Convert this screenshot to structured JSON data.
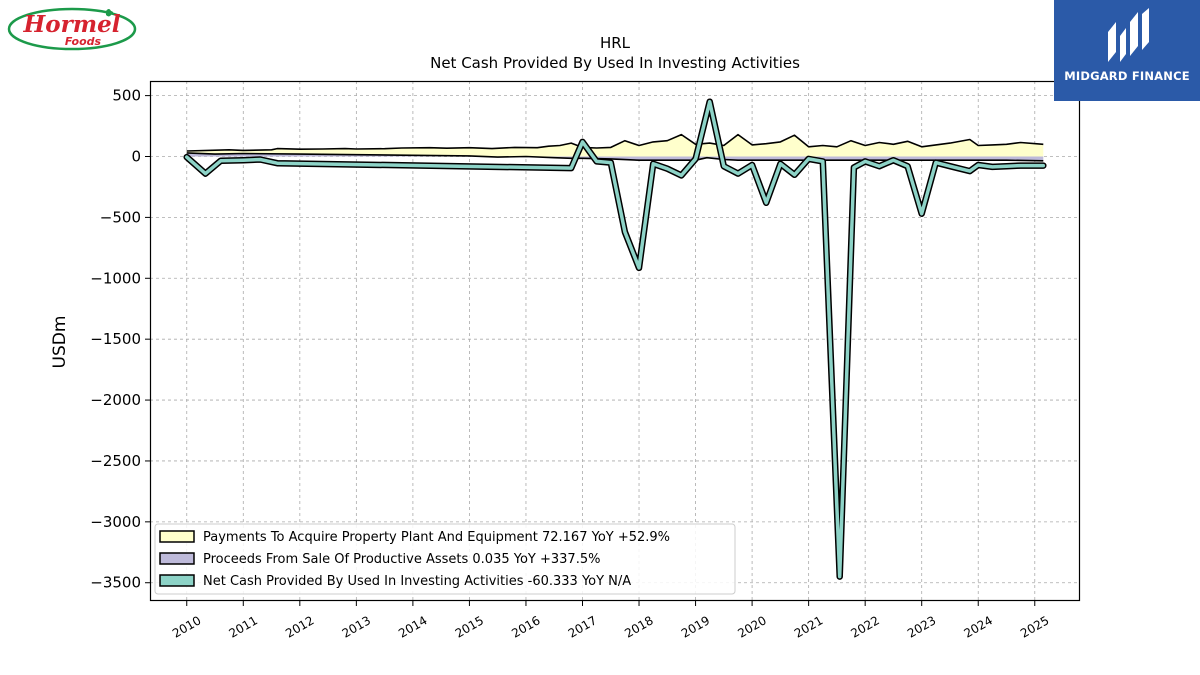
{
  "brand": {
    "logo_line1": "Hormel",
    "logo_line2": "Foods",
    "sponsor_name": "MIDGARD FINANCE"
  },
  "chart_data": {
    "type": "area",
    "ticker": "HRL",
    "title": "Net Cash Provided By Used In Investing Activities",
    "ylabel": "USDm",
    "ylim": [
      -3650,
      620
    ],
    "xlim": [
      2009.35,
      2025.8
    ],
    "grid": true,
    "legend_position": "lower-left",
    "y_ticks": [
      500,
      0,
      -500,
      -1000,
      -1500,
      -2000,
      -2500,
      -3000,
      -3500
    ],
    "y_tick_labels": [
      "500",
      "0",
      "−500",
      "−1000",
      "−1500",
      "−2000",
      "−2500",
      "−3000",
      "−3500"
    ],
    "x_ticks": [
      2010,
      2011,
      2012,
      2013,
      2014,
      2015,
      2016,
      2017,
      2018,
      2019,
      2020,
      2021,
      2022,
      2023,
      2024,
      2025
    ],
    "series": [
      {
        "name": "Payments To Acquire Property Plant And Equipment",
        "legend_label": "Payments To Acquire Property Plant And Equipment  72.167 YoY +52.9%",
        "color": "#ffffcc",
        "points": [
          [
            2010.0,
            45
          ],
          [
            2010.75,
            55
          ],
          [
            2011.0,
            50
          ],
          [
            2011.5,
            55
          ],
          [
            2011.6,
            65
          ],
          [
            2012.0,
            60
          ],
          [
            2012.4,
            62
          ],
          [
            2012.8,
            65
          ],
          [
            2013.0,
            62
          ],
          [
            2013.5,
            64
          ],
          [
            2013.8,
            70
          ],
          [
            2014.3,
            72
          ],
          [
            2014.6,
            68
          ],
          [
            2015.0,
            72
          ],
          [
            2015.4,
            65
          ],
          [
            2015.8,
            75
          ],
          [
            2016.2,
            72
          ],
          [
            2016.4,
            85
          ],
          [
            2016.6,
            90
          ],
          [
            2016.8,
            110
          ],
          [
            2017.0,
            75
          ],
          [
            2017.25,
            70
          ],
          [
            2017.5,
            75
          ],
          [
            2017.75,
            130
          ],
          [
            2018.0,
            90
          ],
          [
            2018.25,
            120
          ],
          [
            2018.5,
            130
          ],
          [
            2018.75,
            180
          ],
          [
            2019.0,
            100
          ],
          [
            2019.25,
            110
          ],
          [
            2019.5,
            90
          ],
          [
            2019.75,
            180
          ],
          [
            2020.0,
            95
          ],
          [
            2020.25,
            105
          ],
          [
            2020.5,
            120
          ],
          [
            2020.75,
            175
          ],
          [
            2021.0,
            80
          ],
          [
            2021.25,
            90
          ],
          [
            2021.5,
            80
          ],
          [
            2021.75,
            130
          ],
          [
            2022.0,
            90
          ],
          [
            2022.25,
            115
          ],
          [
            2022.5,
            100
          ],
          [
            2022.75,
            125
          ],
          [
            2023.0,
            80
          ],
          [
            2023.25,
            95
          ],
          [
            2023.5,
            110
          ],
          [
            2023.85,
            140
          ],
          [
            2024.0,
            90
          ],
          [
            2024.25,
            95
          ],
          [
            2024.5,
            100
          ],
          [
            2024.75,
            115
          ],
          [
            2025.15,
            100
          ]
        ]
      },
      {
        "name": "Proceeds From Sale Of Productive Assets",
        "legend_label": "Proceeds From Sale Of Productive Assets  0.035 YoY +337.5%",
        "color": "#bebada",
        "points": [
          [
            2010.0,
            30
          ],
          [
            2010.5,
            20
          ],
          [
            2011.0,
            25
          ],
          [
            2012.0,
            20
          ],
          [
            2013.0,
            15
          ],
          [
            2014.0,
            10
          ],
          [
            2015.0,
            5
          ],
          [
            2015.5,
            -5
          ],
          [
            2016.0,
            0
          ],
          [
            2016.5,
            -10
          ],
          [
            2016.8,
            -15
          ],
          [
            2017.0,
            -15
          ],
          [
            2017.5,
            -20
          ],
          [
            2018.0,
            -30
          ],
          [
            2018.5,
            -30
          ],
          [
            2019.0,
            -30
          ],
          [
            2019.2,
            -10
          ],
          [
            2019.5,
            -25
          ],
          [
            2019.75,
            -30
          ],
          [
            2020.0,
            -30
          ],
          [
            2020.5,
            -30
          ],
          [
            2021.0,
            -30
          ],
          [
            2021.5,
            -30
          ],
          [
            2022.0,
            -30
          ],
          [
            2022.5,
            -30
          ],
          [
            2023.0,
            -30
          ],
          [
            2023.5,
            -30
          ],
          [
            2024.0,
            -30
          ],
          [
            2024.5,
            -30
          ],
          [
            2025.15,
            -35
          ]
        ]
      },
      {
        "name": "Net Cash Provided By Used In Investing Activities",
        "legend_label": "Net Cash Provided By Used In Investing Activities  -60.333 YoY N/A",
        "color": "#8dd3c7",
        "points": [
          [
            2010.0,
            -5
          ],
          [
            2010.33,
            -140
          ],
          [
            2010.6,
            -35
          ],
          [
            2011.0,
            -30
          ],
          [
            2011.3,
            -25
          ],
          [
            2011.6,
            -55
          ],
          [
            2016.8,
            -95
          ],
          [
            2017.0,
            120
          ],
          [
            2017.25,
            -40
          ],
          [
            2017.5,
            -50
          ],
          [
            2017.75,
            -620
          ],
          [
            2018.0,
            -915
          ],
          [
            2018.25,
            -60
          ],
          [
            2018.5,
            -100
          ],
          [
            2018.75,
            -155
          ],
          [
            2019.0,
            -20
          ],
          [
            2019.25,
            450
          ],
          [
            2019.5,
            -80
          ],
          [
            2019.75,
            -140
          ],
          [
            2020.0,
            -70
          ],
          [
            2020.25,
            -380
          ],
          [
            2020.5,
            -60
          ],
          [
            2020.75,
            -150
          ],
          [
            2021.0,
            -20
          ],
          [
            2021.25,
            -40
          ],
          [
            2021.55,
            -3450
          ],
          [
            2021.8,
            -90
          ],
          [
            2022.0,
            -40
          ],
          [
            2022.25,
            -80
          ],
          [
            2022.5,
            -30
          ],
          [
            2022.75,
            -80
          ],
          [
            2023.0,
            -470
          ],
          [
            2023.25,
            -50
          ],
          [
            2023.5,
            -80
          ],
          [
            2023.85,
            -120
          ],
          [
            2024.0,
            -70
          ],
          [
            2024.25,
            -85
          ],
          [
            2024.5,
            -80
          ],
          [
            2024.75,
            -75
          ],
          [
            2025.15,
            -75
          ]
        ]
      }
    ]
  }
}
